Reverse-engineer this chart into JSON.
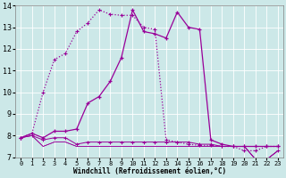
{
  "xlabel": "Windchill (Refroidissement éolien,°C)",
  "background_color": "#cce8e8",
  "line_color": "#990099",
  "xlim": [
    -0.5,
    23.5
  ],
  "ylim": [
    7.0,
    14.0
  ],
  "xticks": [
    0,
    1,
    2,
    3,
    4,
    5,
    6,
    7,
    8,
    9,
    10,
    11,
    12,
    13,
    14,
    15,
    16,
    17,
    18,
    19,
    20,
    21,
    22,
    23
  ],
  "yticks": [
    7,
    8,
    9,
    10,
    11,
    12,
    13,
    14
  ],
  "series_dotted_x": [
    0,
    1,
    2,
    3,
    4,
    5,
    6,
    7,
    8,
    9,
    10,
    11,
    12,
    13,
    14,
    15,
    16,
    17,
    18,
    19,
    20,
    21,
    22,
    23
  ],
  "series_dotted_y": [
    7.9,
    8.1,
    10.0,
    11.5,
    11.8,
    12.8,
    13.2,
    13.8,
    13.6,
    13.55,
    13.55,
    13.0,
    12.9,
    7.8,
    7.7,
    7.6,
    7.55,
    7.55,
    7.5,
    7.5,
    7.3,
    7.3,
    7.5,
    7.5
  ],
  "series_solid_x": [
    0,
    1,
    2,
    3,
    4,
    5,
    6,
    7,
    8,
    9,
    10,
    11,
    12,
    13,
    14,
    15,
    16,
    17,
    18,
    19,
    20,
    21,
    22,
    23
  ],
  "series_solid_y": [
    7.9,
    8.1,
    7.9,
    8.2,
    8.2,
    8.3,
    9.5,
    9.8,
    10.5,
    11.6,
    13.8,
    12.8,
    12.7,
    12.5,
    13.7,
    13.0,
    12.9,
    7.8,
    7.6,
    7.5,
    7.5,
    7.5,
    7.5,
    7.5
  ],
  "series_flat1_x": [
    0,
    1,
    2,
    3,
    4,
    5,
    6,
    7,
    8,
    9,
    10,
    11,
    12,
    13,
    14,
    15,
    16,
    17,
    18,
    19,
    20,
    21,
    22,
    23
  ],
  "series_flat1_y": [
    7.9,
    8.0,
    7.8,
    7.9,
    7.9,
    7.6,
    7.7,
    7.7,
    7.7,
    7.7,
    7.7,
    7.7,
    7.7,
    7.7,
    7.7,
    7.7,
    7.6,
    7.6,
    7.5,
    7.5,
    7.5,
    6.9,
    6.9,
    7.3
  ],
  "series_flat2_x": [
    0,
    1,
    2,
    3,
    4,
    5,
    6,
    7,
    8,
    9,
    10,
    11,
    12,
    13,
    14,
    15,
    16,
    17,
    18,
    19,
    20,
    21,
    22,
    23
  ],
  "series_flat2_y": [
    7.9,
    8.0,
    7.5,
    7.7,
    7.7,
    7.5,
    7.5,
    7.5,
    7.5,
    7.5,
    7.5,
    7.5,
    7.5,
    7.5,
    7.5,
    7.5,
    7.5,
    7.5,
    7.5,
    7.5,
    7.5,
    6.9,
    6.9,
    7.3
  ],
  "series_flat3_x": [
    0,
    1,
    2,
    3,
    4,
    5,
    6,
    7,
    8,
    9,
    10,
    11,
    12,
    13,
    14,
    15,
    16,
    17,
    18,
    19,
    20,
    21,
    22,
    23
  ],
  "series_flat3_y": [
    7.9,
    8.0,
    7.5,
    7.7,
    7.7,
    7.5,
    7.5,
    7.5,
    7.5,
    7.5,
    7.5,
    7.5,
    7.5,
    7.5,
    7.5,
    7.5,
    7.5,
    7.5,
    7.5,
    7.5,
    7.5,
    6.9,
    6.9,
    7.3
  ]
}
